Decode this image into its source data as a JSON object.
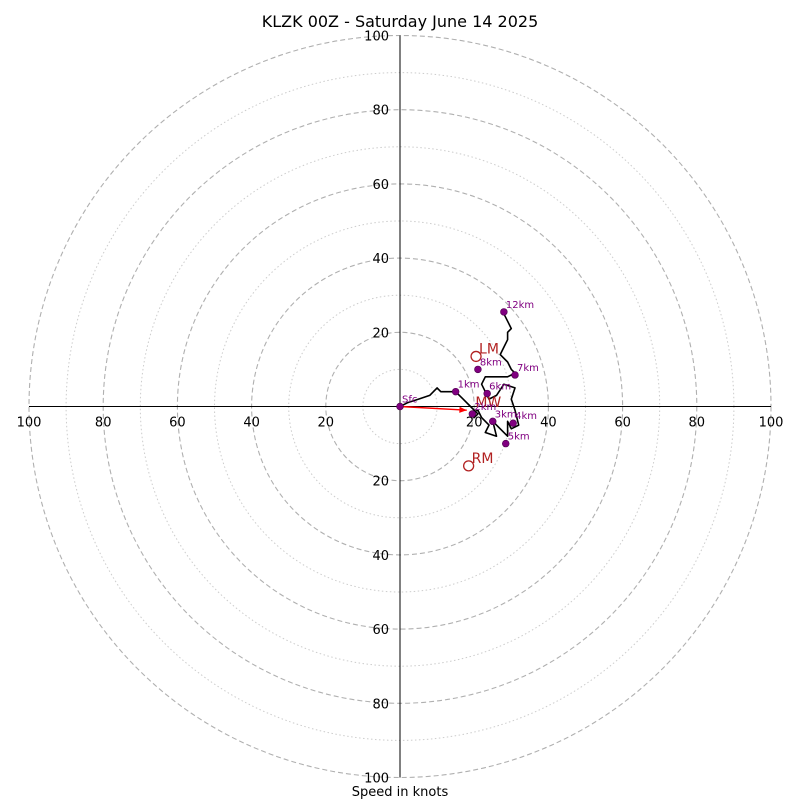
{
  "chart_data": {
    "type": "scatter",
    "subtype": "hodograph",
    "title": "KLZK 00Z - Saturday June 14 2025",
    "xlabel": "Speed in knots",
    "ylabel": "",
    "xlim": [
      -100,
      100
    ],
    "ylim": [
      -100,
      100
    ],
    "grid": true,
    "ring_major_every": 20,
    "ring_minor_every": 10,
    "xticks": [
      "100",
      "80",
      "60",
      "40",
      "20",
      "",
      "20",
      "40",
      "60",
      "80",
      "100"
    ],
    "yticks": [
      "100",
      "80",
      "60",
      "40",
      "20",
      "",
      "20",
      "40",
      "60",
      "80",
      "100"
    ],
    "series": [
      {
        "type": "line",
        "color": "#000000",
        "points": [
          [
            0,
            0
          ],
          [
            2,
            1
          ],
          [
            5,
            2
          ],
          [
            8,
            3
          ],
          [
            10,
            5
          ],
          [
            11,
            4
          ],
          [
            13,
            4
          ],
          [
            15,
            4
          ],
          [
            17,
            2
          ],
          [
            19,
            0
          ],
          [
            21,
            -2
          ],
          [
            20,
            -3
          ],
          [
            19,
            -2
          ],
          [
            21,
            -1
          ],
          [
            22,
            -3
          ],
          [
            24,
            -5
          ],
          [
            23,
            -7
          ],
          [
            26,
            -8
          ],
          [
            25,
            -4
          ],
          [
            27,
            -6
          ],
          [
            29,
            -8
          ],
          [
            29,
            -4
          ],
          [
            30,
            -6
          ],
          [
            32,
            -5
          ],
          [
            31,
            -1
          ],
          [
            30,
            2
          ],
          [
            31,
            5
          ],
          [
            28,
            6
          ],
          [
            26,
            3
          ],
          [
            24,
            2
          ],
          [
            23,
            4
          ],
          [
            22,
            6
          ],
          [
            23,
            8
          ],
          [
            26,
            8
          ],
          [
            29,
            8
          ],
          [
            31,
            9
          ],
          [
            30,
            10
          ],
          [
            29,
            12
          ],
          [
            27,
            14
          ],
          [
            28,
            16
          ],
          [
            29,
            18
          ],
          [
            29,
            20
          ],
          [
            30,
            21
          ],
          [
            29,
            23
          ],
          [
            28,
            25
          ]
        ]
      }
    ],
    "height_markers": [
      {
        "label": "Sfc",
        "x": 0,
        "y": 0
      },
      {
        "label": "1km",
        "x": 15,
        "y": 4
      },
      {
        "label": "2km",
        "x": 19.5,
        "y": -2
      },
      {
        "label": "3km",
        "x": 25,
        "y": -4
      },
      {
        "label": "4km",
        "x": 30.5,
        "y": -4.5
      },
      {
        "label": "5km",
        "x": 28.5,
        "y": -10
      },
      {
        "label": "6km",
        "x": 23.5,
        "y": 3.5
      },
      {
        "label": "7km",
        "x": 31,
        "y": 8.5
      },
      {
        "label": "8km",
        "x": 21,
        "y": 10
      },
      {
        "label": "12km",
        "x": 28,
        "y": 25.5
      }
    ],
    "storm_motion": [
      {
        "label": "LM",
        "x": 20.5,
        "y": 13.5
      },
      {
        "label": "RM",
        "x": 18.5,
        "y": -16
      },
      {
        "label": "MW",
        "x": 19.5,
        "y": -1
      }
    ],
    "shear_vector": {
      "color": "#ff0000",
      "from": [
        0,
        0
      ],
      "to": [
        18,
        -1
      ]
    },
    "colors": {
      "trace": "#000000",
      "height_markers": "#800080",
      "storm_motion": "#b22222",
      "shear": "#ff0000"
    }
  }
}
